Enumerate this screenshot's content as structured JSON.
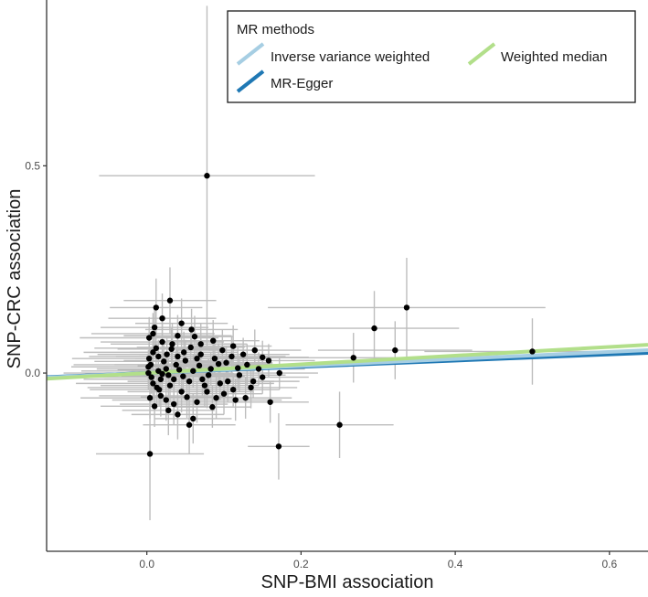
{
  "chart_data": {
    "type": "scatter",
    "title": "",
    "xlabel": "SNP-BMI association",
    "ylabel": "SNP-CRC association",
    "xlim": [
      -0.13,
      0.65
    ],
    "ylim": [
      -0.43,
      0.9
    ],
    "grid": false,
    "x_ticks": [
      0.0,
      0.2,
      0.4,
      0.6
    ],
    "x_tick_labels": [
      "0.0",
      "0.2",
      "0.4",
      "0.6"
    ],
    "y_ticks": [
      0.0,
      0.5
    ],
    "y_tick_labels": [
      "0.0",
      "0.5"
    ],
    "legend": {
      "title": "MR methods",
      "placement": "top-right",
      "entries": [
        {
          "label": "Inverse variance weighted",
          "color": "#a6cee3"
        },
        {
          "label": "Weighted median",
          "color": "#b2df8a"
        },
        {
          "label": "MR-Egger",
          "color": "#1f78b4"
        }
      ]
    },
    "lines": [
      {
        "name": "Inverse variance weighted",
        "color": "#a6cee3",
        "intercept": 0.0,
        "slope": 0.085
      },
      {
        "name": "MR-Egger",
        "color": "#1f78b4",
        "intercept": 0.0,
        "slope": 0.075
      },
      {
        "name": "Weighted median",
        "color": "#b2df8a",
        "intercept": 0.0,
        "slope": 0.105
      }
    ],
    "point_color": "#000000",
    "error_bar_color": "#bdbdbd",
    "points": [
      {
        "x": 0.078,
        "y": 0.476,
        "xerr": 0.14,
        "yerr": 0.41
      },
      {
        "x": 0.337,
        "y": 0.158,
        "xerr": 0.18,
        "yerr": 0.12
      },
      {
        "x": 0.295,
        "y": 0.108,
        "xerr": 0.11,
        "yerr": 0.09
      },
      {
        "x": 0.5,
        "y": 0.052,
        "xerr": 0.14,
        "yerr": 0.08
      },
      {
        "x": 0.322,
        "y": 0.055,
        "xerr": 0.1,
        "yerr": 0.07
      },
      {
        "x": 0.268,
        "y": 0.037,
        "xerr": 0.12,
        "yerr": 0.06
      },
      {
        "x": 0.25,
        "y": -0.125,
        "xerr": 0.07,
        "yerr": 0.08
      },
      {
        "x": 0.171,
        "y": -0.177,
        "xerr": 0.04,
        "yerr": 0.08
      },
      {
        "x": 0.004,
        "y": -0.195,
        "xerr": 0.07,
        "yerr": 0.16
      },
      {
        "x": 0.03,
        "y": 0.175,
        "xerr": 0.06,
        "yerr": 0.08
      },
      {
        "x": 0.012,
        "y": 0.158,
        "xerr": 0.06,
        "yerr": 0.07
      },
      {
        "x": 0.02,
        "y": 0.132,
        "xerr": 0.07,
        "yerr": 0.06
      },
      {
        "x": 0.045,
        "y": 0.12,
        "xerr": 0.06,
        "yerr": 0.06
      },
      {
        "x": 0.008,
        "y": 0.095,
        "xerr": 0.08,
        "yerr": 0.05
      },
      {
        "x": 0.062,
        "y": 0.088,
        "xerr": 0.05,
        "yerr": 0.05
      },
      {
        "x": 0.086,
        "y": 0.078,
        "xerr": 0.06,
        "yerr": 0.05
      },
      {
        "x": 0.112,
        "y": 0.065,
        "xerr": 0.05,
        "yerr": 0.05
      },
      {
        "x": 0.14,
        "y": 0.055,
        "xerr": 0.06,
        "yerr": 0.05
      },
      {
        "x": 0.158,
        "y": 0.03,
        "xerr": 0.06,
        "yerr": 0.04
      },
      {
        "x": 0.15,
        "y": -0.01,
        "xerr": 0.06,
        "yerr": 0.04
      },
      {
        "x": 0.172,
        "y": 0.0,
        "xerr": 0.05,
        "yerr": 0.04
      },
      {
        "x": 0.16,
        "y": -0.07,
        "xerr": 0.05,
        "yerr": 0.05
      },
      {
        "x": 0.128,
        "y": -0.06,
        "xerr": 0.06,
        "yerr": 0.05
      },
      {
        "x": 0.1,
        "y": -0.05,
        "xerr": 0.05,
        "yerr": 0.05
      },
      {
        "x": 0.085,
        "y": -0.082,
        "xerr": 0.05,
        "yerr": 0.05
      },
      {
        "x": 0.055,
        "y": -0.125,
        "xerr": 0.06,
        "yerr": 0.07
      },
      {
        "x": 0.04,
        "y": -0.1,
        "xerr": 0.06,
        "yerr": 0.06
      },
      {
        "x": 0.028,
        "y": -0.09,
        "xerr": 0.06,
        "yerr": 0.06
      },
      {
        "x": 0.06,
        "y": -0.11,
        "xerr": 0.05,
        "yerr": 0.06
      },
      {
        "x": 0.01,
        "y": -0.08,
        "xerr": 0.07,
        "yerr": 0.05
      },
      {
        "x": 0.07,
        "y": 0.045,
        "xerr": 0.08,
        "yerr": 0.05
      },
      {
        "x": 0.032,
        "y": 0.058,
        "xerr": 0.07,
        "yerr": 0.05
      },
      {
        "x": 0.05,
        "y": 0.03,
        "xerr": 0.08,
        "yerr": 0.05
      },
      {
        "x": 0.093,
        "y": 0.022,
        "xerr": 0.07,
        "yerr": 0.05
      },
      {
        "x": 0.118,
        "y": 0.012,
        "xerr": 0.06,
        "yerr": 0.05
      },
      {
        "x": 0.105,
        "y": -0.02,
        "xerr": 0.06,
        "yerr": 0.05
      },
      {
        "x": 0.075,
        "y": -0.03,
        "xerr": 0.07,
        "yerr": 0.05
      },
      {
        "x": 0.045,
        "y": -0.045,
        "xerr": 0.07,
        "yerr": 0.05
      },
      {
        "x": 0.018,
        "y": -0.055,
        "xerr": 0.08,
        "yerr": 0.05
      },
      {
        "x": 0.015,
        "y": 0.04,
        "xerr": 0.09,
        "yerr": 0.04
      },
      {
        "x": 0.025,
        "y": 0.01,
        "xerr": 0.09,
        "yerr": 0.04
      },
      {
        "x": 0.035,
        "y": -0.015,
        "xerr": 0.09,
        "yerr": 0.04
      },
      {
        "x": 0.06,
        "y": 0.005,
        "xerr": 0.08,
        "yerr": 0.04
      },
      {
        "x": 0.08,
        "y": -0.005,
        "xerr": 0.08,
        "yerr": 0.04
      },
      {
        "x": 0.005,
        "y": 0.02,
        "xerr": 0.1,
        "yerr": 0.04
      },
      {
        "x": 0.008,
        "y": -0.025,
        "xerr": 0.1,
        "yerr": 0.04
      },
      {
        "x": 0.002,
        "y": 0.0,
        "xerr": 0.11,
        "yerr": 0.04
      },
      {
        "x": 0.02,
        "y": 0.075,
        "xerr": 0.08,
        "yerr": 0.05
      },
      {
        "x": 0.04,
        "y": 0.09,
        "xerr": 0.07,
        "yerr": 0.05
      },
      {
        "x": 0.07,
        "y": 0.07,
        "xerr": 0.06,
        "yerr": 0.05
      },
      {
        "x": 0.11,
        "y": 0.04,
        "xerr": 0.07,
        "yerr": 0.05
      },
      {
        "x": 0.13,
        "y": 0.02,
        "xerr": 0.06,
        "yerr": 0.05
      },
      {
        "x": 0.135,
        "y": -0.035,
        "xerr": 0.06,
        "yerr": 0.05
      },
      {
        "x": 0.09,
        "y": -0.06,
        "xerr": 0.06,
        "yerr": 0.05
      },
      {
        "x": 0.065,
        "y": -0.07,
        "xerr": 0.06,
        "yerr": 0.05
      },
      {
        "x": 0.025,
        "y": -0.065,
        "xerr": 0.07,
        "yerr": 0.05
      },
      {
        "x": 0.012,
        "y": 0.06,
        "xerr": 0.08,
        "yerr": 0.05
      },
      {
        "x": 0.048,
        "y": 0.05,
        "xerr": 0.07,
        "yerr": 0.05
      },
      {
        "x": 0.098,
        "y": 0.055,
        "xerr": 0.06,
        "yerr": 0.05
      },
      {
        "x": 0.038,
        "y": 0.02,
        "xerr": 0.08,
        "yerr": 0.04
      },
      {
        "x": 0.055,
        "y": -0.02,
        "xerr": 0.08,
        "yerr": 0.04
      },
      {
        "x": 0.016,
        "y": -0.04,
        "xerr": 0.09,
        "yerr": 0.04
      },
      {
        "x": 0.003,
        "y": 0.035,
        "xerr": 0.1,
        "yerr": 0.04
      },
      {
        "x": 0.006,
        "y": -0.01,
        "xerr": 0.1,
        "yerr": 0.04
      },
      {
        "x": 0.022,
        "y": 0.028,
        "xerr": 0.09,
        "yerr": 0.04
      },
      {
        "x": 0.03,
        "y": -0.03,
        "xerr": 0.09,
        "yerr": 0.04
      },
      {
        "x": 0.042,
        "y": 0.008,
        "xerr": 0.08,
        "yerr": 0.04
      },
      {
        "x": 0.068,
        "y": 0.018,
        "xerr": 0.08,
        "yerr": 0.04
      },
      {
        "x": 0.088,
        "y": 0.035,
        "xerr": 0.07,
        "yerr": 0.04
      },
      {
        "x": 0.12,
        "y": -0.005,
        "xerr": 0.06,
        "yerr": 0.04
      },
      {
        "x": 0.145,
        "y": 0.01,
        "xerr": 0.06,
        "yerr": 0.04
      },
      {
        "x": 0.112,
        "y": -0.04,
        "xerr": 0.06,
        "yerr": 0.04
      },
      {
        "x": 0.078,
        "y": -0.045,
        "xerr": 0.06,
        "yerr": 0.04
      },
      {
        "x": 0.052,
        "y": -0.058,
        "xerr": 0.06,
        "yerr": 0.05
      },
      {
        "x": 0.01,
        "y": 0.11,
        "xerr": 0.07,
        "yerr": 0.05
      },
      {
        "x": 0.058,
        "y": 0.105,
        "xerr": 0.06,
        "yerr": 0.05
      },
      {
        "x": 0.035,
        "y": -0.075,
        "xerr": 0.07,
        "yerr": 0.05
      },
      {
        "x": 0.003,
        "y": 0.085,
        "xerr": 0.09,
        "yerr": 0.05
      },
      {
        "x": 0.004,
        "y": -0.06,
        "xerr": 0.09,
        "yerr": 0.05
      },
      {
        "x": 0.015,
        "y": 0.005,
        "xerr": 0.1,
        "yerr": 0.04
      },
      {
        "x": 0.026,
        "y": 0.045,
        "xerr": 0.09,
        "yerr": 0.04
      },
      {
        "x": 0.028,
        "y": -0.005,
        "xerr": 0.09,
        "yerr": 0.04
      },
      {
        "x": 0.047,
        "y": -0.008,
        "xerr": 0.08,
        "yerr": 0.04
      },
      {
        "x": 0.065,
        "y": 0.035,
        "xerr": 0.08,
        "yerr": 0.04
      },
      {
        "x": 0.083,
        "y": 0.01,
        "xerr": 0.07,
        "yerr": 0.04
      },
      {
        "x": 0.095,
        "y": -0.025,
        "xerr": 0.07,
        "yerr": 0.04
      },
      {
        "x": 0.103,
        "y": 0.025,
        "xerr": 0.06,
        "yerr": 0.04
      },
      {
        "x": 0.125,
        "y": 0.045,
        "xerr": 0.06,
        "yerr": 0.04
      },
      {
        "x": 0.138,
        "y": -0.02,
        "xerr": 0.06,
        "yerr": 0.04
      },
      {
        "x": 0.018,
        "y": -0.015,
        "xerr": 0.1,
        "yerr": 0.04
      },
      {
        "x": 0.008,
        "y": 0.05,
        "xerr": 0.09,
        "yerr": 0.04
      },
      {
        "x": 0.033,
        "y": 0.07,
        "xerr": 0.08,
        "yerr": 0.05
      },
      {
        "x": 0.072,
        "y": -0.015,
        "xerr": 0.07,
        "yerr": 0.04
      },
      {
        "x": 0.04,
        "y": 0.04,
        "xerr": 0.08,
        "yerr": 0.04
      },
      {
        "x": 0.013,
        "y": -0.035,
        "xerr": 0.09,
        "yerr": 0.04
      },
      {
        "x": 0.002,
        "y": 0.015,
        "xerr": 0.1,
        "yerr": 0.04
      },
      {
        "x": 0.02,
        "y": -0.002,
        "xerr": 0.1,
        "yerr": 0.04
      },
      {
        "x": 0.057,
        "y": 0.062,
        "xerr": 0.07,
        "yerr": 0.05
      },
      {
        "x": 0.15,
        "y": 0.038,
        "xerr": 0.06,
        "yerr": 0.04
      },
      {
        "x": 0.115,
        "y": -0.065,
        "xerr": 0.06,
        "yerr": 0.05
      }
    ]
  }
}
